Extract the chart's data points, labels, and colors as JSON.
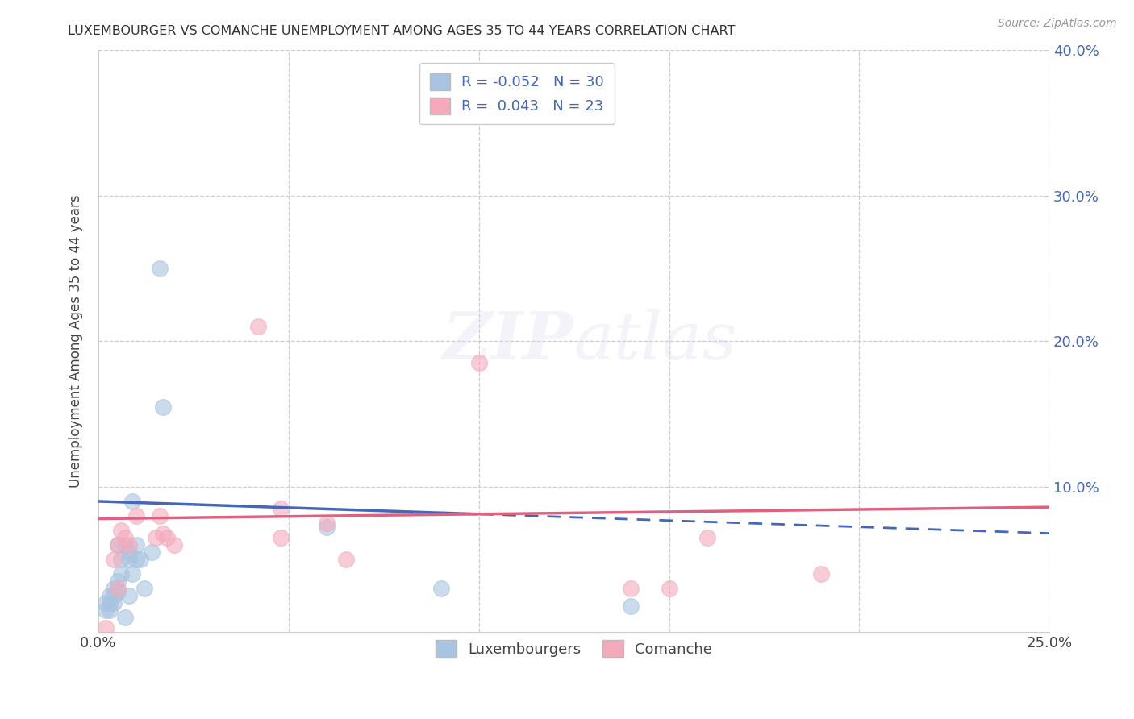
{
  "title": "LUXEMBOURGER VS COMANCHE UNEMPLOYMENT AMONG AGES 35 TO 44 YEARS CORRELATION CHART",
  "source": "Source: ZipAtlas.com",
  "ylabel": "Unemployment Among Ages 35 to 44 years",
  "xlim": [
    0.0,
    0.25
  ],
  "ylim": [
    0.0,
    0.4
  ],
  "legend_R_blue": "-0.052",
  "legend_N_blue": "30",
  "legend_R_pink": "0.043",
  "legend_N_pink": "23",
  "blue_color": "#A8C4E0",
  "pink_color": "#F4AABB",
  "blue_line_color": "#4466BB",
  "pink_line_color": "#E06080",
  "watermark_zip": "ZIP",
  "watermark_atlas": "atlas",
  "grid_color": "#CCCCCC",
  "bg_color": "#FFFFFF",
  "blue_points_x": [
    0.002,
    0.002,
    0.003,
    0.003,
    0.003,
    0.004,
    0.004,
    0.004,
    0.005,
    0.005,
    0.005,
    0.006,
    0.006,
    0.007,
    0.007,
    0.008,
    0.008,
    0.008,
    0.009,
    0.009,
    0.01,
    0.01,
    0.011,
    0.012,
    0.014,
    0.016,
    0.017,
    0.06,
    0.09,
    0.14
  ],
  "blue_points_y": [
    0.02,
    0.015,
    0.025,
    0.02,
    0.015,
    0.03,
    0.025,
    0.02,
    0.06,
    0.035,
    0.028,
    0.05,
    0.04,
    0.06,
    0.01,
    0.055,
    0.05,
    0.025,
    0.09,
    0.04,
    0.06,
    0.05,
    0.05,
    0.03,
    0.055,
    0.25,
    0.155,
    0.072,
    0.03,
    0.018
  ],
  "pink_points_x": [
    0.002,
    0.004,
    0.005,
    0.005,
    0.006,
    0.007,
    0.008,
    0.01,
    0.015,
    0.016,
    0.017,
    0.018,
    0.02,
    0.042,
    0.048,
    0.048,
    0.06,
    0.065,
    0.1,
    0.14,
    0.15,
    0.16,
    0.19
  ],
  "pink_points_y": [
    0.003,
    0.05,
    0.06,
    0.03,
    0.07,
    0.065,
    0.06,
    0.08,
    0.065,
    0.08,
    0.068,
    0.065,
    0.06,
    0.21,
    0.085,
    0.065,
    0.075,
    0.05,
    0.185,
    0.03,
    0.03,
    0.065,
    0.04
  ],
  "blue_trend_x0": 0.0,
  "blue_trend_y0": 0.09,
  "blue_trend_x1": 0.25,
  "blue_trend_y1": 0.068,
  "pink_trend_x0": 0.0,
  "pink_trend_y0": 0.078,
  "pink_trend_x1": 0.25,
  "pink_trend_y1": 0.086
}
